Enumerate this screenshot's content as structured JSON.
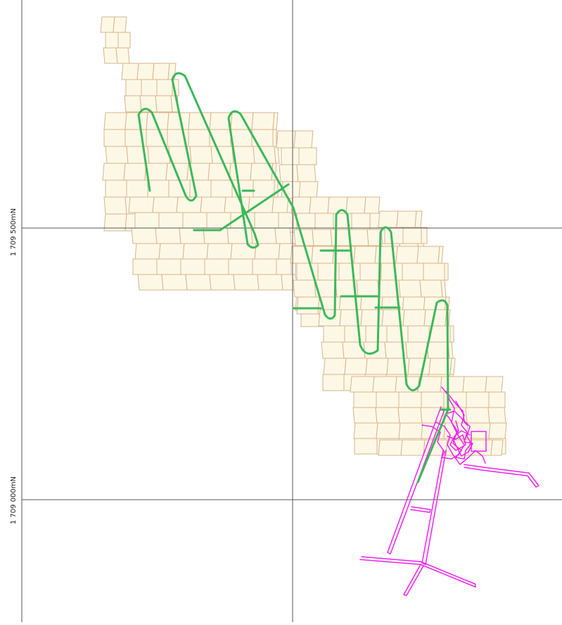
{
  "map": {
    "northing_labels": [
      "1 709 500mN",
      "1 709 000mN"
    ],
    "colors": {
      "block_fill": "#fdf8e6",
      "block_grid": "#d9b38c",
      "development_drives": "#3cb85b",
      "underground_workings": "#ee22ee",
      "grid_lines": "#555555"
    },
    "layers": [
      "stope-block-grid",
      "green-development-drives",
      "magenta-underground-workings",
      "coordinate-grid"
    ]
  }
}
